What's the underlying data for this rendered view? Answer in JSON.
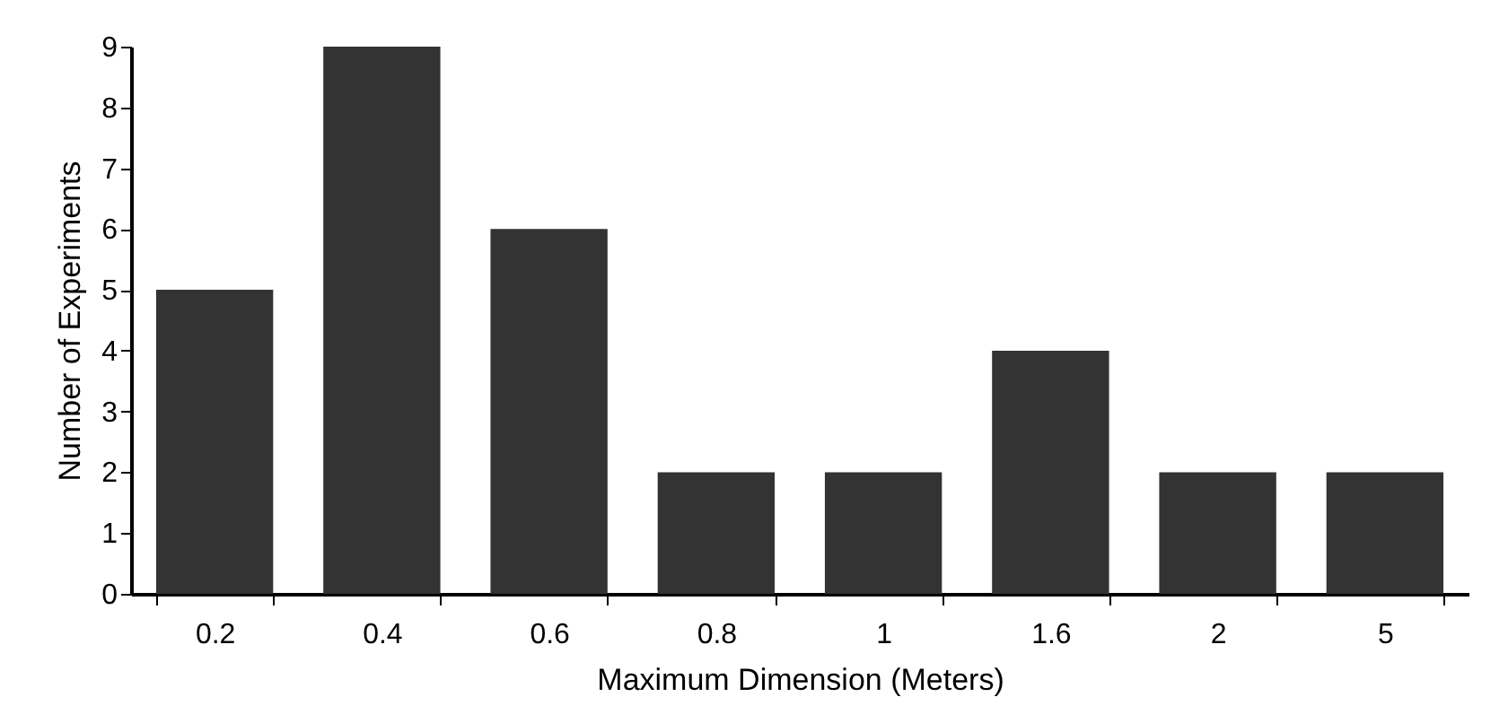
{
  "chart_data": {
    "type": "bar",
    "xlabel": "Maximum Dimension (Meters)",
    "ylabel": "Number of Experiments",
    "categories": [
      "0.2",
      "0.4",
      "0.6",
      "0.8",
      "1",
      "1.6",
      "2",
      "5"
    ],
    "values": [
      5,
      9,
      6,
      2,
      2,
      4,
      2,
      2
    ],
    "color": "#333333",
    "ylim": [
      0,
      9
    ],
    "yticks": [
      0,
      1,
      2,
      3,
      4,
      5,
      6,
      7,
      8,
      9
    ],
    "grid": false
  }
}
